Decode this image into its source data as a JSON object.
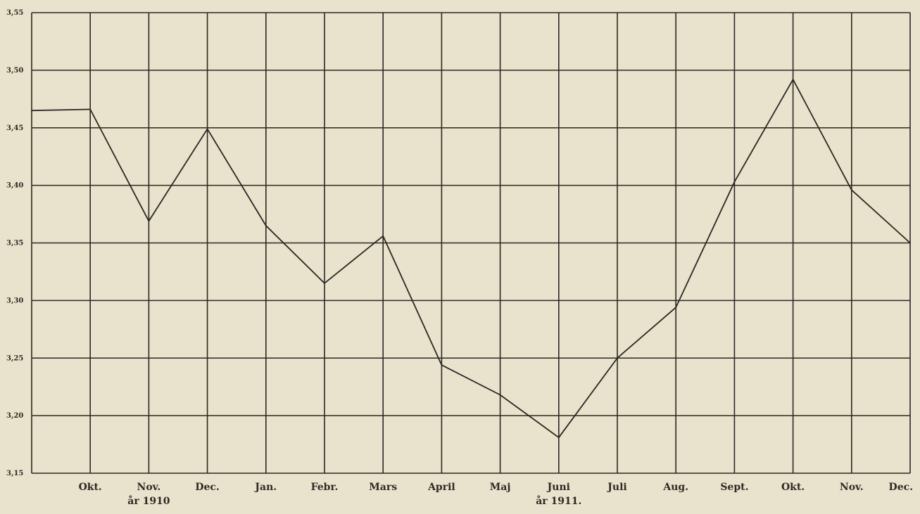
{
  "chart_data": {
    "type": "line",
    "title": "",
    "xlabel": "",
    "ylabel": "",
    "categories": [
      "",
      "Okt.",
      "Nov.",
      "Dec.",
      "Jan.",
      "Febr.",
      "Mars",
      "April",
      "Maj",
      "Juni",
      "Juli",
      "Aug.",
      "Sept.",
      "Okt.",
      "Nov.",
      "Dec."
    ],
    "year_labels": [
      {
        "category_index": 2,
        "text": "år 1910"
      },
      {
        "category_index": 9,
        "text": "år 1911."
      }
    ],
    "y_ticks": [
      "3,15",
      "3,20",
      "3,25",
      "3,30",
      "3,35",
      "3,40",
      "3,45",
      "3,50",
      "3,55"
    ],
    "ylim": [
      3.15,
      3.55
    ],
    "grid": true,
    "series": [
      {
        "values": [
          3.465,
          3.466,
          3.369,
          3.449,
          3.365,
          3.315,
          3.356,
          3.244,
          3.218,
          3.181,
          3.25,
          3.294,
          3.403,
          3.492,
          3.396,
          3.35
        ]
      }
    ]
  }
}
